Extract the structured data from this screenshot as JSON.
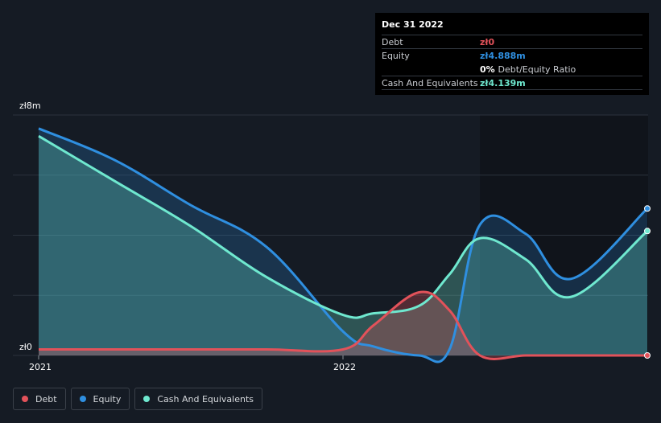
{
  "tooltip": {
    "date": "Dec 31 2022",
    "debt_label": "Debt",
    "debt_value": "zł0",
    "equity_label": "Equity",
    "equity_value": "zł4.888m",
    "ratio_value": "0%",
    "ratio_label": "Debt/Equity Ratio",
    "cash_label": "Cash And Equivalents",
    "cash_value": "zł4.139m"
  },
  "axis": {
    "y_top_label": "zł8m",
    "y_bottom_label": "zł0",
    "x_labels": [
      "2021",
      "2022"
    ]
  },
  "legend": [
    {
      "label": "Debt",
      "color": "#e2525a"
    },
    {
      "label": "Equity",
      "color": "#2f8fe0"
    },
    {
      "label": "Cash And Equivalents",
      "color": "#6fe8cf"
    }
  ],
  "colors": {
    "background": "#151b24",
    "plot_right": "#10141b",
    "debt": "#e2525a",
    "equity": "#2f8fe0",
    "cash": "#6fe8cf"
  },
  "chart_data": {
    "type": "area",
    "ylim": [
      0,
      8
    ],
    "x_ticks": [
      "2021",
      "2022"
    ],
    "series": [
      {
        "name": "Debt",
        "x": [
          2021.0,
          2021.25,
          2021.5,
          2021.75,
          2022.0,
          2022.1,
          2022.25,
          2022.35,
          2022.45,
          2022.6,
          2022.75,
          2023.0
        ],
        "values": [
          0.2,
          0.2,
          0.2,
          0.2,
          0.2,
          1.0,
          2.1,
          1.5,
          0,
          0,
          0,
          0
        ]
      },
      {
        "name": "Equity",
        "x": [
          2021.0,
          2021.25,
          2021.5,
          2021.75,
          2022.0,
          2022.1,
          2022.25,
          2022.35,
          2022.45,
          2022.6,
          2022.75,
          2023.0
        ],
        "values": [
          7.55,
          6.5,
          5.0,
          3.6,
          0.8,
          0.3,
          0.0,
          0.2,
          4.35,
          4.05,
          2.55,
          4.888
        ]
      },
      {
        "name": "Cash And Equivalents",
        "x": [
          2021.0,
          2021.25,
          2021.5,
          2021.75,
          2022.0,
          2022.1,
          2022.25,
          2022.35,
          2022.45,
          2022.6,
          2022.75,
          2023.0
        ],
        "values": [
          7.3,
          5.8,
          4.3,
          2.6,
          1.35,
          1.4,
          1.65,
          2.7,
          3.9,
          3.2,
          1.95,
          4.139
        ]
      }
    ]
  }
}
